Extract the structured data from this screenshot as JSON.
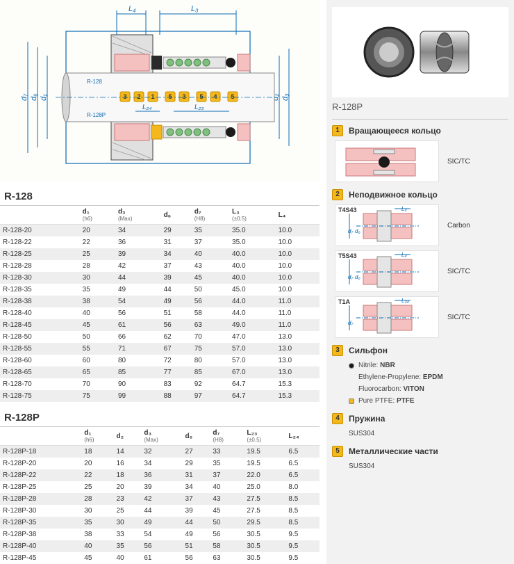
{
  "colors": {
    "accent": "#f5b81c",
    "accent_border": "#c78f00",
    "row_odd": "#eeeeee",
    "row_even": "#ffffff",
    "blue_line": "#0a6bb5",
    "pink": "#f4c0c0",
    "dark": "#2a2a2a",
    "spring": "#7fbf7f",
    "body": "#e5e5e5"
  },
  "diagram": {
    "label_top": "R-128",
    "label_bot": "R-128P",
    "dims_top": [
      "L₄",
      "L₃"
    ],
    "dims_left": [
      "d₇",
      "d₆",
      "d₁"
    ],
    "dims_right": [
      "d₂",
      "d₃"
    ],
    "dims_bot": [
      "L₂₄",
      "L₂₃"
    ],
    "callouts": [
      "3",
      "2",
      "1",
      "5",
      "3",
      "5",
      "4",
      "5"
    ]
  },
  "table1": {
    "title": "R-128",
    "cols": [
      {
        "h": "",
        "sub": ""
      },
      {
        "h": "d₁",
        "sub": "(h6)"
      },
      {
        "h": "d₃",
        "sub": "(Max)"
      },
      {
        "h": "d₆",
        "sub": ""
      },
      {
        "h": "d₇",
        "sub": "(H8)"
      },
      {
        "h": "L₃",
        "sub": "(±0.5)"
      },
      {
        "h": "L₄",
        "sub": ""
      }
    ],
    "rows": [
      [
        "R-128-20",
        "20",
        "34",
        "29",
        "35",
        "35.0",
        "10.0"
      ],
      [
        "R-128-22",
        "22",
        "36",
        "31",
        "37",
        "35.0",
        "10.0"
      ],
      [
        "R-128-25",
        "25",
        "39",
        "34",
        "40",
        "40.0",
        "10.0"
      ],
      [
        "R-128-28",
        "28",
        "42",
        "37",
        "43",
        "40.0",
        "10.0"
      ],
      [
        "R-128-30",
        "30",
        "44",
        "39",
        "45",
        "40.0",
        "10.0"
      ],
      [
        "R-128-35",
        "35",
        "49",
        "44",
        "50",
        "45.0",
        "10.0"
      ],
      [
        "R-128-38",
        "38",
        "54",
        "49",
        "56",
        "44.0",
        "11.0"
      ],
      [
        "R-128-40",
        "40",
        "56",
        "51",
        "58",
        "44.0",
        "11.0"
      ],
      [
        "R-128-45",
        "45",
        "61",
        "56",
        "63",
        "49.0",
        "11.0"
      ],
      [
        "R-128-50",
        "50",
        "66",
        "62",
        "70",
        "47.0",
        "13.0"
      ],
      [
        "R-128-55",
        "55",
        "71",
        "67",
        "75",
        "57.0",
        "13.0"
      ],
      [
        "R-128-60",
        "60",
        "80",
        "72",
        "80",
        "57.0",
        "13.0"
      ],
      [
        "R-128-65",
        "65",
        "85",
        "77",
        "85",
        "67.0",
        "13.0"
      ],
      [
        "R-128-70",
        "70",
        "90",
        "83",
        "92",
        "64.7",
        "15.3"
      ],
      [
        "R-128-75",
        "75",
        "99",
        "88",
        "97",
        "64.7",
        "15.3"
      ]
    ]
  },
  "table2": {
    "title": "R-128P",
    "cols": [
      {
        "h": "",
        "sub": ""
      },
      {
        "h": "d₁",
        "sub": "(h6)"
      },
      {
        "h": "d₂",
        "sub": ""
      },
      {
        "h": "d₃",
        "sub": "(Max)"
      },
      {
        "h": "d₆",
        "sub": ""
      },
      {
        "h": "d₇",
        "sub": "(H8)"
      },
      {
        "h": "L₂₃",
        "sub": "(±0.5)"
      },
      {
        "h": "L₂₄",
        "sub": ""
      }
    ],
    "rows": [
      [
        "R-128P-18",
        "18",
        "14",
        "32",
        "27",
        "33",
        "19.5",
        "6.5"
      ],
      [
        "R-128P-20",
        "20",
        "16",
        "34",
        "29",
        "35",
        "19.5",
        "6.5"
      ],
      [
        "R-128P-22",
        "22",
        "18",
        "36",
        "31",
        "37",
        "22.0",
        "6.5"
      ],
      [
        "R-128P-25",
        "25",
        "20",
        "39",
        "34",
        "40",
        "25.0",
        "8.0"
      ],
      [
        "R-128P-28",
        "28",
        "23",
        "42",
        "37",
        "43",
        "27.5",
        "8.5"
      ],
      [
        "R-128P-30",
        "30",
        "25",
        "44",
        "39",
        "45",
        "27.5",
        "8.5"
      ],
      [
        "R-128P-35",
        "35",
        "30",
        "49",
        "44",
        "50",
        "29.5",
        "8.5"
      ],
      [
        "R-128P-38",
        "38",
        "33",
        "54",
        "49",
        "56",
        "30.5",
        "9.5"
      ],
      [
        "R-128P-40",
        "40",
        "35",
        "56",
        "51",
        "58",
        "30.5",
        "9.5"
      ],
      [
        "R-128P-45",
        "45",
        "40",
        "61",
        "56",
        "63",
        "30.5",
        "9.5"
      ]
    ]
  },
  "right": {
    "model": "R-128P",
    "comp1": {
      "num": "1",
      "title": "Вращающееся кольцо",
      "mat": "SIC/TC"
    },
    "comp2": {
      "num": "2",
      "title": "Неподвижное кольцо",
      "variants": [
        {
          "code": "T4S43",
          "mat": "Carbon",
          "dims": [
            "L₄",
            "d₇",
            "d₆"
          ]
        },
        {
          "code": "T5S43",
          "mat": "SIC/TC",
          "dims": [
            "L₄",
            "d₇",
            "d₆"
          ]
        },
        {
          "code": "T1A",
          "mat": "SIC/TC",
          "dims": [
            "L₂₄",
            "d₇"
          ]
        }
      ]
    },
    "comp3": {
      "num": "3",
      "title": "Сильфон",
      "mats": [
        {
          "dot": "#1a1a1a",
          "pre": "Nitrile:",
          "name": "NBR"
        },
        {
          "dot": null,
          "pre": "Ethylene-Propylene:",
          "name": "EPDM"
        },
        {
          "dot": null,
          "pre": "Fluorocarbon:",
          "name": "VITON"
        },
        {
          "dot": "#f5b81c",
          "pre": "Pure PTFE:",
          "name": "PTFE",
          "square": true
        }
      ]
    },
    "comp4": {
      "num": "4",
      "title": "Пружина",
      "mat": "SUS304"
    },
    "comp5": {
      "num": "5",
      "title": "Металлические части",
      "mat": "SUS304"
    }
  }
}
